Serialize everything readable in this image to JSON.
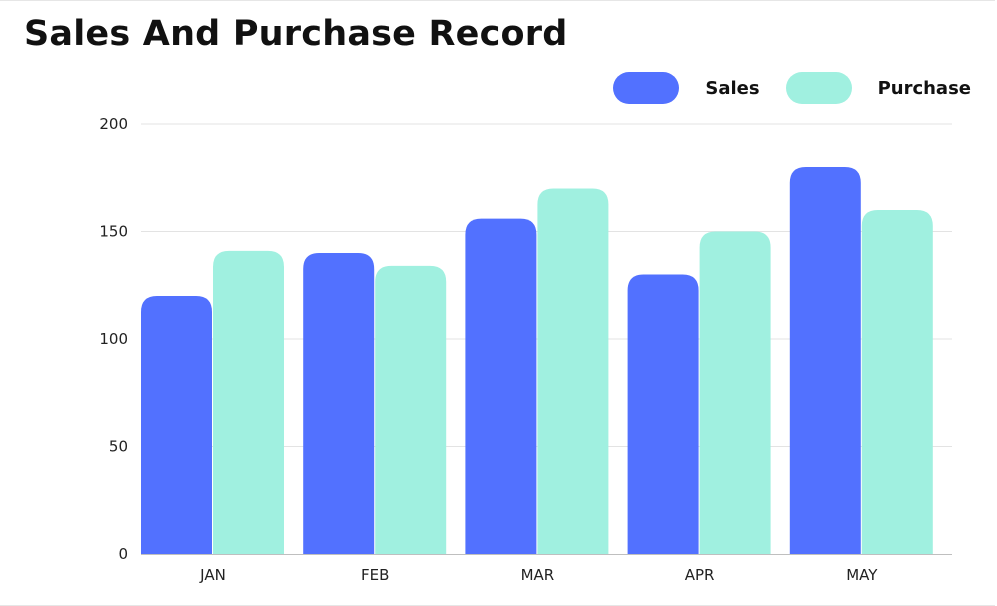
{
  "chart_data": {
    "type": "bar",
    "title": "Sales And Purchase Record",
    "categories": [
      "JAN",
      "FEB",
      "MAR",
      "APR",
      "MAY"
    ],
    "series": [
      {
        "name": "Sales",
        "color": "#5271ff",
        "values": [
          120,
          140,
          156,
          130,
          180
        ]
      },
      {
        "name": "Purchase",
        "color": "#a0f0e0",
        "values": [
          141,
          134,
          170,
          150,
          160
        ]
      }
    ],
    "ylim": [
      0,
      200
    ],
    "yticks": [
      0,
      50,
      100,
      150,
      200
    ],
    "grid": true,
    "legend_position": "top-right",
    "xlabel": "",
    "ylabel": ""
  }
}
